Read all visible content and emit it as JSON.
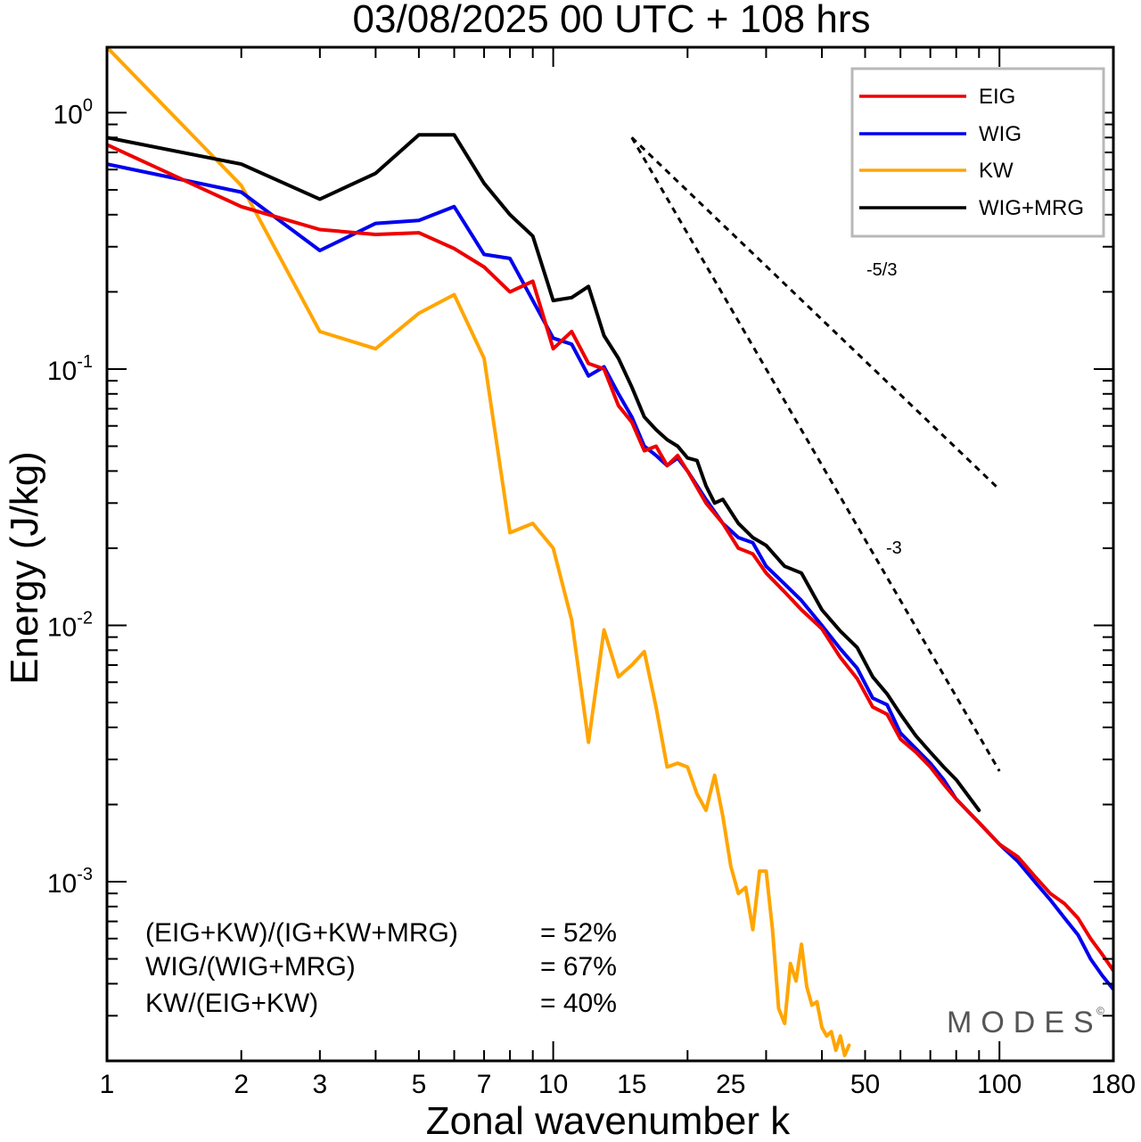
{
  "chart_data": {
    "type": "line",
    "title": "03/08/2025  00 UTC  + 108 hrs",
    "xlabel": "Zonal wavenumber k",
    "ylabel": "Energy (J/kg)",
    "xscale": "log",
    "yscale": "log",
    "xlim": [
      1,
      180
    ],
    "ylim": [
      0.0002,
      1.8
    ],
    "x_ticks": [
      1,
      2,
      3,
      5,
      7,
      10,
      15,
      25,
      50,
      100,
      180
    ],
    "y_ticks": [
      {
        "base": "10",
        "exp": "0",
        "value": 1
      },
      {
        "base": "10",
        "exp": "-1",
        "value": 0.1
      },
      {
        "base": "10",
        "exp": "-2",
        "value": 0.01
      },
      {
        "base": "10",
        "exp": "-3",
        "value": 0.001
      }
    ],
    "series": [
      {
        "name": "EIG",
        "color": "#ee0000",
        "x": [
          1,
          2,
          3,
          4,
          5,
          6,
          7,
          8,
          9,
          10,
          11,
          12,
          13,
          14,
          15,
          16,
          17,
          18,
          19,
          20,
          22,
          24,
          26,
          28,
          30,
          33,
          36,
          40,
          44,
          48,
          52,
          56,
          60,
          65,
          70,
          75,
          80,
          90,
          100,
          110,
          120,
          130,
          140,
          150,
          160,
          170,
          180
        ],
        "y": [
          0.75,
          0.43,
          0.35,
          0.335,
          0.34,
          0.295,
          0.25,
          0.2,
          0.22,
          0.12,
          0.14,
          0.105,
          0.1,
          0.072,
          0.062,
          0.048,
          0.05,
          0.042,
          0.046,
          0.04,
          0.03,
          0.025,
          0.02,
          0.019,
          0.016,
          0.0135,
          0.0115,
          0.0097,
          0.0075,
          0.0062,
          0.0048,
          0.0045,
          0.0036,
          0.0032,
          0.0028,
          0.0024,
          0.0021,
          0.0017,
          0.0014,
          0.00125,
          0.00105,
          0.0009,
          0.00082,
          0.00072,
          0.0006,
          0.00052,
          0.00045
        ]
      },
      {
        "name": "WIG",
        "color": "#0000ee",
        "x": [
          1,
          2,
          3,
          4,
          5,
          6,
          7,
          8,
          9,
          10,
          11,
          12,
          13,
          14,
          15,
          16,
          17,
          18,
          19,
          20,
          22,
          24,
          26,
          28,
          30,
          33,
          36,
          40,
          44,
          48,
          52,
          56,
          60,
          65,
          70,
          75,
          80,
          90,
          100,
          110,
          120,
          130,
          140,
          150,
          160,
          170,
          180
        ],
        "y": [
          0.63,
          0.49,
          0.29,
          0.37,
          0.38,
          0.43,
          0.28,
          0.27,
          0.185,
          0.132,
          0.125,
          0.094,
          0.102,
          0.08,
          0.065,
          0.05,
          0.046,
          0.042,
          0.045,
          0.04,
          0.031,
          0.025,
          0.022,
          0.021,
          0.017,
          0.0145,
          0.0125,
          0.01,
          0.0081,
          0.0068,
          0.0052,
          0.0049,
          0.0038,
          0.0033,
          0.0029,
          0.0025,
          0.0021,
          0.0017,
          0.0014,
          0.0012,
          0.001,
          0.00085,
          0.00072,
          0.00062,
          0.0005,
          0.00043,
          0.00038
        ]
      },
      {
        "name": "KW",
        "color": "#ffa500",
        "x": [
          1,
          2,
          3,
          4,
          5,
          6,
          7,
          8,
          9,
          10,
          11,
          12,
          13,
          14,
          15,
          16,
          17,
          18,
          19,
          20,
          21,
          22,
          23,
          24,
          25,
          26,
          27,
          28,
          29,
          30,
          31,
          32,
          33,
          34,
          35,
          36,
          37,
          38,
          39,
          40,
          41,
          42,
          43,
          44,
          45,
          46
        ],
        "y": [
          1.8,
          0.52,
          0.14,
          0.12,
          0.165,
          0.195,
          0.11,
          0.023,
          0.025,
          0.02,
          0.0105,
          0.0035,
          0.0096,
          0.0063,
          0.007,
          0.0079,
          0.0048,
          0.0028,
          0.0029,
          0.0028,
          0.0022,
          0.0019,
          0.0026,
          0.0018,
          0.00115,
          0.0009,
          0.00095,
          0.00065,
          0.0011,
          0.0011,
          0.00065,
          0.00032,
          0.00028,
          0.00048,
          0.00041,
          0.00057,
          0.00039,
          0.00033,
          0.00034,
          0.00027,
          0.00025,
          0.00026,
          0.00022,
          0.00025,
          0.00021,
          0.00023
        ]
      },
      {
        "name": "WIG+MRG",
        "color": "#000000",
        "x": [
          1,
          2,
          3,
          4,
          5,
          6,
          7,
          8,
          9,
          10,
          11,
          12,
          13,
          14,
          15,
          16,
          17,
          18,
          19,
          20,
          21,
          22,
          23,
          24,
          26,
          28,
          30,
          33,
          36,
          40,
          44,
          48,
          52,
          56,
          60,
          65,
          70,
          75,
          80,
          90
        ],
        "y": [
          0.8,
          0.63,
          0.46,
          0.58,
          0.82,
          0.82,
          0.53,
          0.4,
          0.33,
          0.185,
          0.19,
          0.21,
          0.135,
          0.11,
          0.085,
          0.065,
          0.058,
          0.053,
          0.05,
          0.045,
          0.044,
          0.035,
          0.03,
          0.031,
          0.025,
          0.022,
          0.0205,
          0.017,
          0.016,
          0.0115,
          0.0095,
          0.0082,
          0.0063,
          0.0054,
          0.0045,
          0.0037,
          0.0032,
          0.0028,
          0.0025,
          0.0019
        ]
      }
    ],
    "reference_lines": [
      {
        "label": "-5/3",
        "slope": -1.6667,
        "x": [
          15,
          100
        ],
        "y0": 0.8
      },
      {
        "label": "-3",
        "slope": -3,
        "x": [
          15,
          100
        ],
        "y0": 0.8
      }
    ],
    "annotations": [
      {
        "text": "(EIG+KW)/(IG+KW+MRG)",
        "value": "= 52%"
      },
      {
        "text": "WIG/(WIG+MRG)",
        "value": "= 67%"
      },
      {
        "text": "KW/(EIG+KW)",
        "value": "= 40%"
      }
    ],
    "legend_position": "top-right",
    "watermark": "MODES",
    "watermark_mark": "©"
  }
}
